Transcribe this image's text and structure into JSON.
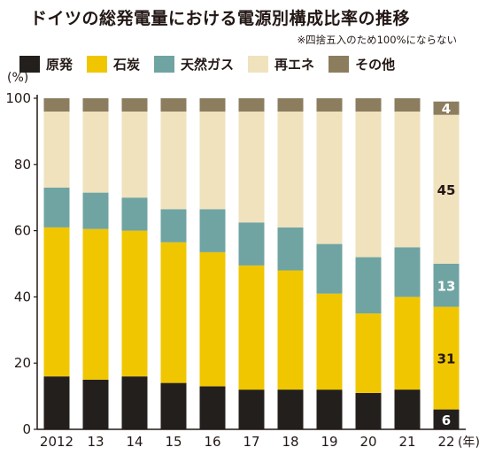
{
  "title": "ドイツの総発電量における電源別構成比率の推移",
  "subtitle": "※四捨五入のため100%にならない",
  "colors": {
    "nuclear": "#231f1c",
    "coal": "#f0c600",
    "natural_gas": "#6fa4a2",
    "renewables": "#efe2bd",
    "other": "#8c7d5f"
  },
  "chart_data": {
    "type": "bar",
    "stacked": true,
    "title": "ドイツの総発電量における電源別構成比率の推移",
    "ylabel": "(%)",
    "xlabel": "(年)",
    "ylim": [
      0,
      100
    ],
    "yticks": [
      0,
      20,
      40,
      60,
      80,
      100
    ],
    "categories": [
      "2012",
      "13",
      "14",
      "15",
      "16",
      "17",
      "18",
      "19",
      "20",
      "21",
      "22"
    ],
    "series": [
      {
        "name": "原発",
        "key": "nuclear",
        "values": [
          16,
          15,
          16,
          14,
          13,
          12,
          12,
          12,
          11,
          12,
          6
        ]
      },
      {
        "name": "石炭",
        "key": "coal",
        "values": [
          45,
          45.5,
          44,
          42.5,
          40.5,
          37.5,
          36,
          29,
          24,
          28,
          31
        ]
      },
      {
        "name": "天然ガス",
        "key": "natural_gas",
        "values": [
          12,
          11,
          10,
          10,
          13,
          13,
          13,
          15,
          17,
          15,
          13
        ]
      },
      {
        "name": "再エネ",
        "key": "renewables",
        "values": [
          23,
          24.5,
          26,
          29.5,
          29.5,
          33.5,
          35,
          40,
          44,
          41,
          45
        ]
      },
      {
        "name": "その他",
        "key": "other",
        "values": [
          4,
          4,
          4,
          4,
          4,
          4,
          4,
          4,
          4,
          4,
          4
        ]
      }
    ],
    "data_labels": [
      {
        "category": "22",
        "series": "原発",
        "text": "6"
      },
      {
        "category": "22",
        "series": "石炭",
        "text": "31"
      },
      {
        "category": "22",
        "series": "天然ガス",
        "text": "13"
      },
      {
        "category": "22",
        "series": "再エネ",
        "text": "45"
      },
      {
        "category": "22",
        "series": "その他",
        "text": "4"
      }
    ],
    "grid": false,
    "legend_position": "top"
  }
}
